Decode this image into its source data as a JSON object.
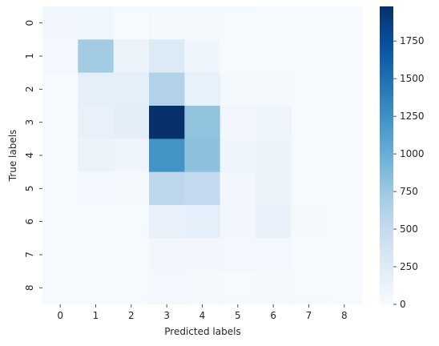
{
  "chart_data": {
    "type": "heatmap",
    "title": "",
    "xlabel": "Predicted labels",
    "ylabel": "True labels",
    "x_categories": [
      "0",
      "1",
      "2",
      "3",
      "4",
      "5",
      "6",
      "7",
      "8"
    ],
    "y_categories": [
      "0",
      "1",
      "2",
      "3",
      "4",
      "5",
      "6",
      "7",
      "8"
    ],
    "values": [
      [
        60,
        80,
        20,
        30,
        30,
        20,
        10,
        10,
        10
      ],
      [
        40,
        720,
        110,
        270,
        90,
        20,
        20,
        10,
        10
      ],
      [
        20,
        180,
        180,
        620,
        160,
        30,
        30,
        10,
        10
      ],
      [
        20,
        150,
        200,
        1980,
        800,
        60,
        90,
        10,
        10
      ],
      [
        10,
        110,
        90,
        1230,
        830,
        90,
        110,
        20,
        10
      ],
      [
        10,
        40,
        30,
        550,
        520,
        60,
        110,
        20,
        10
      ],
      [
        10,
        20,
        20,
        150,
        190,
        60,
        140,
        30,
        10
      ],
      [
        10,
        10,
        10,
        60,
        60,
        40,
        50,
        20,
        10
      ],
      [
        10,
        10,
        10,
        40,
        30,
        20,
        30,
        20,
        10
      ]
    ],
    "colorbar": {
      "colormap": "Blues",
      "range": [
        0,
        1980
      ],
      "ticks": [
        0,
        250,
        500,
        750,
        1000,
        1250,
        1500,
        1750
      ],
      "tick_labels": [
        "0",
        "250",
        "500",
        "750",
        "1000",
        "1250",
        "1500",
        "1750"
      ]
    },
    "grid": false,
    "legend": "colorbar-right"
  }
}
